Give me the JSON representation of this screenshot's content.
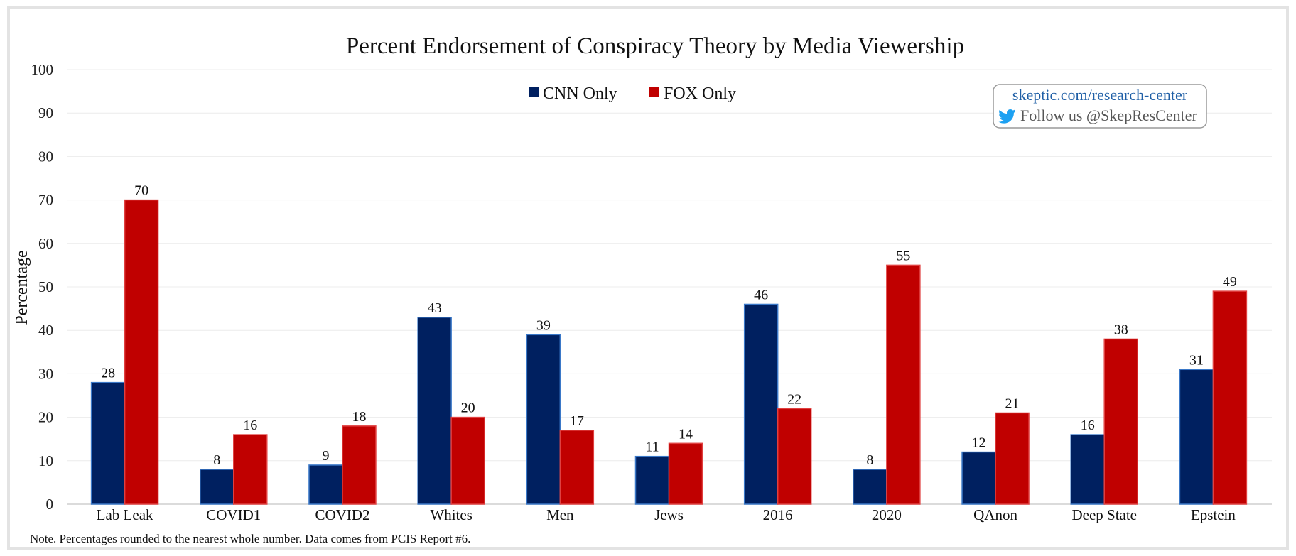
{
  "chart_data": {
    "type": "bar",
    "title": "Percent Endorsement of Conspiracy Theory by Media Viewership",
    "xlabel": "",
    "ylabel": "Percentage",
    "ylim": [
      0,
      100
    ],
    "yticks": [
      0,
      10,
      20,
      30,
      40,
      50,
      60,
      70,
      80,
      90,
      100
    ],
    "grid": true,
    "legend_position": "top-center",
    "categories": [
      "Lab Leak",
      "COVID1",
      "COVID2",
      "Whites",
      "Men",
      "Jews",
      "2016",
      "2020",
      "QAnon",
      "Deep State",
      "Epstein"
    ],
    "series": [
      {
        "name": "CNN Only",
        "color": "#002060",
        "values": [
          28,
          8,
          9,
          43,
          39,
          11,
          46,
          8,
          12,
          16,
          31
        ]
      },
      {
        "name": "FOX Only",
        "color": "#c00000",
        "values": [
          70,
          16,
          18,
          20,
          17,
          14,
          22,
          55,
          21,
          38,
          49
        ]
      }
    ],
    "note": "Note. Percentages rounded to the nearest whole number. Data comes from PCIS Report #6."
  },
  "badge": {
    "site": "skeptic.com/research-center",
    "follow": "Follow us @SkepResCenter",
    "icon": "twitter-bird-icon",
    "icon_color": "#1da1f2"
  }
}
